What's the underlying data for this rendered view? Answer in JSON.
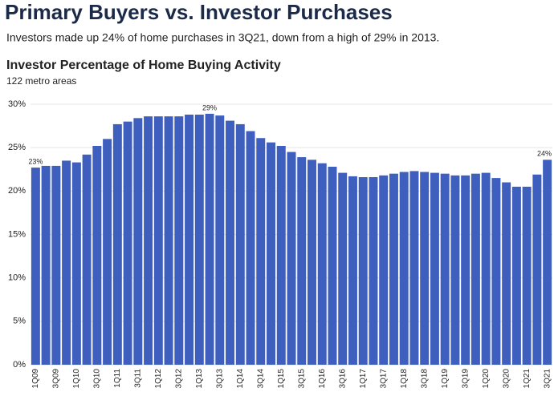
{
  "header": {
    "title": "Primary Buyers vs. Investor Purchases",
    "subtitle": "Investors made up 24% of home purchases in 3Q21, down from a high of 29% in 2013."
  },
  "chart_data": {
    "type": "bar",
    "title": "Investor Percentage of Home Buying Activity",
    "subtitle": "122 metro areas",
    "categories": [
      "1Q09",
      null,
      "3Q09",
      null,
      "1Q10",
      null,
      "3Q10",
      null,
      "1Q11",
      null,
      "3Q11",
      null,
      "1Q12",
      null,
      "3Q12",
      null,
      "1Q13",
      null,
      "3Q13",
      null,
      "1Q14",
      null,
      "3Q14",
      null,
      "1Q15",
      null,
      "3Q15",
      null,
      "1Q16",
      null,
      "3Q16",
      null,
      "1Q17",
      null,
      "3Q17",
      null,
      "1Q18",
      null,
      "3Q18",
      null,
      "1Q19",
      null,
      "3Q19",
      null,
      "1Q20",
      null,
      "3Q20",
      null,
      "1Q21",
      null,
      "3Q21"
    ],
    "values": [
      22.7,
      22.9,
      22.9,
      23.5,
      23.3,
      24.2,
      25.2,
      26.0,
      27.7,
      28.0,
      28.4,
      28.6,
      28.6,
      28.6,
      28.6,
      28.8,
      28.8,
      28.9,
      28.7,
      28.1,
      27.7,
      26.9,
      26.1,
      25.6,
      25.2,
      24.5,
      23.9,
      23.6,
      23.2,
      22.8,
      22.1,
      21.7,
      21.6,
      21.6,
      21.8,
      22.0,
      22.2,
      22.3,
      22.2,
      22.1,
      22.0,
      21.8,
      21.8,
      22.0,
      22.1,
      21.5,
      21.0,
      20.5,
      20.5,
      21.9,
      23.6
    ],
    "value_labels": [
      "23%",
      null,
      null,
      null,
      null,
      null,
      null,
      null,
      null,
      null,
      null,
      null,
      null,
      null,
      null,
      null,
      null,
      "29%",
      null,
      null,
      null,
      null,
      null,
      null,
      null,
      null,
      null,
      null,
      null,
      null,
      null,
      null,
      null,
      null,
      null,
      null,
      null,
      null,
      null,
      null,
      null,
      null,
      null,
      null,
      null,
      null,
      null,
      null,
      null,
      null,
      "24%"
    ],
    "color": "#3f5fbf",
    "ylim": [
      0,
      30
    ],
    "yticks": [
      {
        "value": 0,
        "label": "0%"
      },
      {
        "value": 5,
        "label": "5%"
      },
      {
        "value": 10,
        "label": "10%"
      },
      {
        "value": 15,
        "label": "15%"
      },
      {
        "value": 20,
        "label": "20%"
      },
      {
        "value": 25,
        "label": "25%"
      },
      {
        "value": 30,
        "label": "30%"
      }
    ],
    "grid": true
  }
}
